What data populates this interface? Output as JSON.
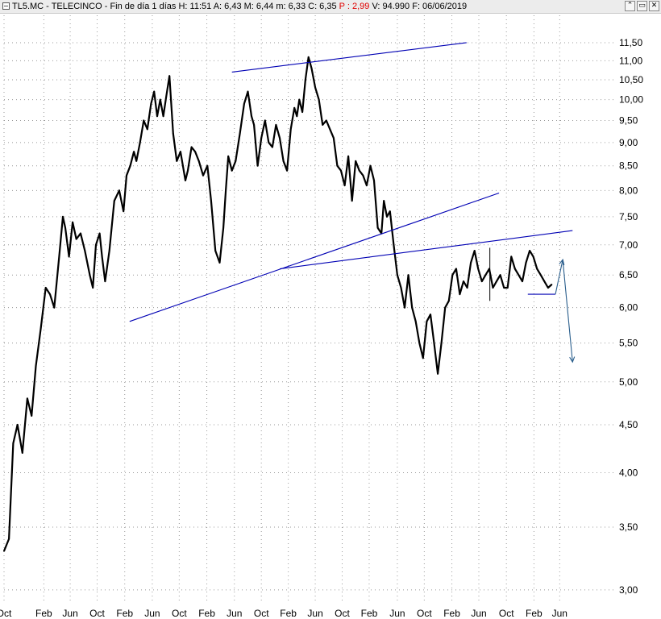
{
  "window": {
    "symbol": "TL5.MC - TELECINCO",
    "period": "Fin de día 1 días",
    "high": "H: 11:51",
    "open": "A: 6,43",
    "mid": "M: 6,44",
    "low": "m: 6,33",
    "close": "C: 6,35",
    "pct_label": "P :",
    "pct_value": "2,99",
    "volume": "V: 94.990",
    "date": "F: 06/06/2019",
    "buttons": [
      "⌃",
      "▭",
      "✕"
    ]
  },
  "chart_data": {
    "type": "line",
    "title": "",
    "xlabel": "",
    "ylabel": "",
    "scale": "log",
    "ylim": [
      2.9,
      12.3
    ],
    "xlim": [
      0,
      1000
    ],
    "grid": true,
    "colors": {
      "price": "#000000",
      "trendline": "#0000b4",
      "projection": "#2a5e8c",
      "grid": "#9a9a9a"
    },
    "y_ticks": [
      {
        "value": 11.5,
        "label": "11,50"
      },
      {
        "value": 11.0,
        "label": "11,00"
      },
      {
        "value": 10.5,
        "label": "10,50"
      },
      {
        "value": 10.0,
        "label": "10,00"
      },
      {
        "value": 9.5,
        "label": "9,50"
      },
      {
        "value": 9.0,
        "label": "9,00"
      },
      {
        "value": 8.5,
        "label": "8,50"
      },
      {
        "value": 8.0,
        "label": "8,00"
      },
      {
        "value": 7.5,
        "label": "7,50"
      },
      {
        "value": 7.0,
        "label": "7,00"
      },
      {
        "value": 6.5,
        "label": "6,50"
      },
      {
        "value": 6.0,
        "label": "6,00"
      },
      {
        "value": 5.5,
        "label": "5,50"
      },
      {
        "value": 5.0,
        "label": "5,00"
      },
      {
        "value": 4.5,
        "label": "4,50"
      },
      {
        "value": 4.0,
        "label": "4,00"
      },
      {
        "value": 3.5,
        "label": "3,50"
      },
      {
        "value": 3.0,
        "label": "3,00"
      }
    ],
    "x_ticks": [
      {
        "t": 0,
        "label": "Oct"
      },
      {
        "t": 65,
        "label": "Feb"
      },
      {
        "t": 108,
        "label": "Jun"
      },
      {
        "t": 152,
        "label": "Oct"
      },
      {
        "t": 197,
        "label": "Feb"
      },
      {
        "t": 242,
        "label": "Jun"
      },
      {
        "t": 286,
        "label": "Oct"
      },
      {
        "t": 331,
        "label": "Feb"
      },
      {
        "t": 376,
        "label": "Jun"
      },
      {
        "t": 420,
        "label": "Oct"
      },
      {
        "t": 464,
        "label": "Feb"
      },
      {
        "t": 508,
        "label": "Jun"
      },
      {
        "t": 552,
        "label": "Oct"
      },
      {
        "t": 596,
        "label": "Feb"
      },
      {
        "t": 642,
        "label": "Jun"
      },
      {
        "t": 686,
        "label": "Oct"
      },
      {
        "t": 731,
        "label": "Feb"
      },
      {
        "t": 775,
        "label": "Jun"
      },
      {
        "t": 820,
        "label": "Oct"
      },
      {
        "t": 865,
        "label": "Feb"
      },
      {
        "t": 907,
        "label": "Jun"
      }
    ],
    "series": [
      {
        "type": "price",
        "x": [
          0,
          8,
          15,
          22,
          30,
          38,
          45,
          52,
          60,
          68,
          75,
          82,
          90,
          96,
          100,
          106,
          112,
          118,
          125,
          132,
          140,
          145,
          150,
          156,
          160,
          165,
          172,
          180,
          188,
          195,
          200,
          206,
          212,
          216,
          222,
          228,
          234,
          240,
          245,
          250,
          255,
          260,
          265,
          270,
          276,
          282,
          288,
          292,
          296,
          300,
          306,
          312,
          318,
          325,
          332,
          338,
          345,
          352,
          358,
          362,
          366,
          372,
          378,
          385,
          392,
          398,
          404,
          408,
          414,
          420,
          426,
          432,
          438,
          444,
          450,
          456,
          462,
          468,
          474,
          478,
          482,
          487,
          492,
          497,
          502,
          508,
          514,
          520,
          526,
          532,
          538,
          544,
          550,
          556,
          562,
          568,
          574,
          580,
          586,
          592,
          598,
          604,
          610,
          616,
          620,
          625,
          630,
          636,
          642,
          648,
          654,
          660,
          666,
          672,
          678,
          684,
          690,
          696,
          702,
          708,
          714,
          720,
          726,
          732,
          738,
          744,
          750,
          756,
          762,
          768,
          774,
          780,
          786,
          792,
          798,
          804,
          810,
          816,
          822,
          828,
          834,
          840,
          846,
          852,
          858,
          864,
          870,
          876,
          882,
          888,
          894
        ],
        "values": [
          3.3,
          3.4,
          4.3,
          4.5,
          4.2,
          4.8,
          4.6,
          5.2,
          5.7,
          6.3,
          6.2,
          6.0,
          6.8,
          7.5,
          7.3,
          6.8,
          7.4,
          7.1,
          7.2,
          6.9,
          6.5,
          6.3,
          7.0,
          7.2,
          6.8,
          6.4,
          6.9,
          7.8,
          8.0,
          7.6,
          8.3,
          8.5,
          8.8,
          8.6,
          9.0,
          9.5,
          9.3,
          9.9,
          10.2,
          9.6,
          10.0,
          9.6,
          10.1,
          10.6,
          9.2,
          8.6,
          8.8,
          8.5,
          8.2,
          8.4,
          8.9,
          8.8,
          8.6,
          8.3,
          8.5,
          7.8,
          6.9,
          6.7,
          7.3,
          8.0,
          8.7,
          8.4,
          8.6,
          9.2,
          9.9,
          10.2,
          9.6,
          9.4,
          8.5,
          9.1,
          9.5,
          9.0,
          8.9,
          9.4,
          9.1,
          8.6,
          8.4,
          9.3,
          9.8,
          9.6,
          10.0,
          9.7,
          10.5,
          11.1,
          10.8,
          10.3,
          10.0,
          9.4,
          9.5,
          9.3,
          9.1,
          8.5,
          8.4,
          8.1,
          8.7,
          7.8,
          8.6,
          8.4,
          8.3,
          8.1,
          8.5,
          8.2,
          7.3,
          7.2,
          7.8,
          7.5,
          7.6,
          7.0,
          6.5,
          6.3,
          6.0,
          6.5,
          6.0,
          5.8,
          5.5,
          5.3,
          5.8,
          5.9,
          5.5,
          5.1,
          5.5,
          6.0,
          6.1,
          6.5,
          6.6,
          6.2,
          6.4,
          6.3,
          6.7,
          6.9,
          6.6,
          6.4,
          6.5,
          6.6,
          6.3,
          6.4,
          6.5,
          6.3,
          6.3,
          6.8,
          6.6,
          6.5,
          6.4,
          6.7,
          6.9,
          6.8,
          6.6,
          6.5,
          6.4,
          6.3,
          6.35
        ]
      },
      {
        "type": "trendline",
        "points": [
          [
            372,
            10.7
          ],
          [
            755,
            11.5
          ]
        ]
      },
      {
        "type": "trendline",
        "points": [
          [
            205,
            5.8
          ],
          [
            808,
            7.95
          ]
        ]
      },
      {
        "type": "trendline",
        "points": [
          [
            450,
            6.6
          ],
          [
            928,
            7.25
          ]
        ]
      },
      {
        "type": "trendline",
        "points": [
          [
            855,
            6.2
          ],
          [
            900,
            6.2
          ]
        ]
      },
      {
        "type": "projection",
        "points": [
          [
            900,
            6.2
          ],
          [
            912,
            6.75
          ]
        ]
      },
      {
        "type": "projection",
        "points": [
          [
            912,
            6.75
          ],
          [
            928,
            5.25
          ]
        ]
      }
    ],
    "annotations": [
      {
        "type": "spike",
        "x": 793,
        "from": 6.1,
        "to": 6.95
      }
    ]
  }
}
